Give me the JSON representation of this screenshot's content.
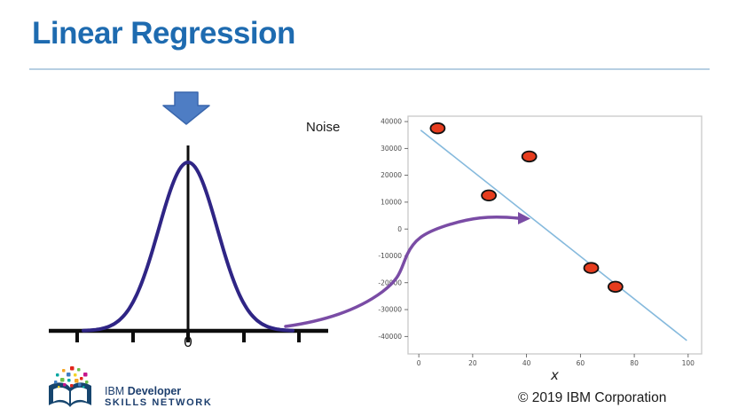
{
  "slide": {
    "title": "Linear Regression",
    "noise_label": "Noise",
    "copyright": "© 2019 IBM Corporation"
  },
  "gaussian": {
    "zero_label": "0"
  },
  "logo": {
    "ibm": "IBM",
    "developer": "Developer",
    "skills": "SKILLS NETWORK"
  },
  "colors": {
    "title_blue": "#1e6bb0",
    "separator": "#b7cfe2",
    "block_arrow_fill": "#4e7dc4",
    "block_arrow_border": "#3a67ad",
    "gaussian_curve": "#2f2585",
    "axis_black": "#0d0d0d",
    "purple_arrow": "#7a4ca5",
    "fit_line": "#86badd",
    "point_fill": "#e63c1e",
    "point_border": "#111111",
    "plot_border": "#c8c8c8",
    "tick_text": "#4d4d4d",
    "logo_navy": "#1c3e6d",
    "body_text": "#1a1a1a"
  },
  "chart_data": {
    "type": "scatter",
    "title": "",
    "xlabel": "x",
    "ylabel": "",
    "xlim": [
      -4,
      105
    ],
    "ylim": [
      -46500,
      42000
    ],
    "x_ticks": [
      0,
      20,
      40,
      60,
      80,
      100
    ],
    "y_ticks": [
      40000,
      30000,
      20000,
      10000,
      0,
      -10000,
      -20000,
      -30000,
      -40000
    ],
    "grid": false,
    "legend": "none",
    "points": [
      {
        "x": 7,
        "y": 37500
      },
      {
        "x": 41,
        "y": 27000
      },
      {
        "x": 26,
        "y": 12500
      },
      {
        "x": 64,
        "y": -14500
      },
      {
        "x": 73,
        "y": -21500
      }
    ],
    "fit_line": {
      "x": [
        0.7,
        99.5
      ],
      "y": [
        36800,
        -41500
      ]
    }
  }
}
